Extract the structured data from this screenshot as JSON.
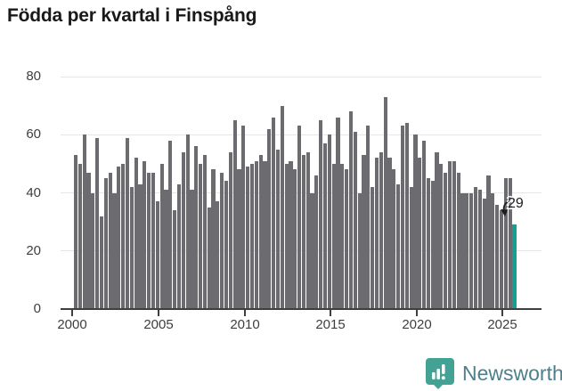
{
  "title": "Födda per kvartal i Finspång",
  "chart_data": {
    "type": "bar",
    "title": "Födda per kvartal i Finspång",
    "xlabel": "",
    "ylabel": "",
    "x_tick_labels": [
      "2000",
      "2005",
      "2010",
      "2015",
      "2020",
      "2025"
    ],
    "y_ticks": [
      0,
      20,
      40,
      60,
      80
    ],
    "ylim": [
      0,
      87
    ],
    "grid": "horizontal",
    "legend": "none",
    "bar_color": "#6b6b70",
    "highlight_color": "#14a090",
    "highlight": "last-bar",
    "highlight_value_label": "29",
    "series": [
      {
        "year": 2000,
        "values": [
          53,
          50,
          60,
          47
        ]
      },
      {
        "year": 2001,
        "values": [
          40,
          59,
          32,
          45
        ]
      },
      {
        "year": 2002,
        "values": [
          47,
          40,
          49,
          50
        ]
      },
      {
        "year": 2003,
        "values": [
          59,
          42,
          52,
          43
        ]
      },
      {
        "year": 2004,
        "values": [
          51,
          47,
          47,
          37
        ]
      },
      {
        "year": 2005,
        "values": [
          50,
          41,
          58,
          34
        ]
      },
      {
        "year": 2006,
        "values": [
          43,
          54,
          60,
          41
        ]
      },
      {
        "year": 2007,
        "values": [
          56,
          50,
          53,
          35
        ]
      },
      {
        "year": 2008,
        "values": [
          48,
          37,
          47,
          44
        ]
      },
      {
        "year": 2009,
        "values": [
          54,
          65,
          48,
          63
        ]
      },
      {
        "year": 2010,
        "values": [
          49,
          50,
          51,
          53
        ]
      },
      {
        "year": 2011,
        "values": [
          51,
          62,
          66,
          55
        ]
      },
      {
        "year": 2012,
        "values": [
          70,
          50,
          51,
          48
        ]
      },
      {
        "year": 2013,
        "values": [
          63,
          53,
          54,
          40
        ]
      },
      {
        "year": 2014,
        "values": [
          46,
          65,
          57,
          60
        ]
      },
      {
        "year": 2015,
        "values": [
          50,
          66,
          50,
          48
        ]
      },
      {
        "year": 2016,
        "values": [
          68,
          61,
          40,
          53
        ]
      },
      {
        "year": 2017,
        "values": [
          63,
          42,
          52,
          54
        ]
      },
      {
        "year": 2018,
        "values": [
          73,
          52,
          48,
          43
        ]
      },
      {
        "year": 2019,
        "values": [
          63,
          64,
          42,
          60
        ]
      },
      {
        "year": 2020,
        "values": [
          52,
          58,
          45,
          44
        ]
      },
      {
        "year": 2021,
        "values": [
          54,
          50,
          47,
          51
        ]
      },
      {
        "year": 2022,
        "values": [
          51,
          47,
          40,
          40
        ]
      },
      {
        "year": 2023,
        "values": [
          40,
          42,
          41,
          38
        ]
      },
      {
        "year": 2024,
        "values": [
          46,
          40,
          36,
          34
        ]
      },
      {
        "year": 2025,
        "values": [
          45,
          45,
          29
        ]
      }
    ]
  },
  "annotation": {
    "label": "29"
  },
  "branding": {
    "name": "Newsworthy",
    "icon": "newsworthy-speech-bubble-chart-icon",
    "icon_color": "#44a294",
    "text_color": "#4d7f8d"
  }
}
